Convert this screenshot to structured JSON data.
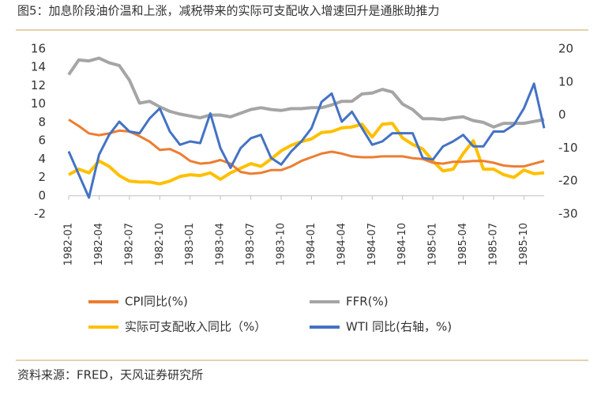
{
  "chart_data": {
    "type": "line",
    "title": "图5：加息阶段油价温和上涨，减税带来的实际可支配收入增速回升是通胀助推力",
    "source": "资料来源：FRED，天风证券研究所",
    "categories": [
      "1982-01",
      null,
      null,
      "1982-04",
      null,
      null,
      "1982-07",
      null,
      null,
      "1982-10",
      null,
      null,
      "1983-01",
      null,
      null,
      "1983-04",
      null,
      null,
      "1983-07",
      null,
      null,
      "1983-10",
      null,
      null,
      "1984-01",
      null,
      null,
      "1984-04",
      null,
      null,
      "1984-07",
      null,
      null,
      "1984-10",
      null,
      null,
      "1985-01",
      null,
      null,
      "1985-04",
      null,
      null,
      "1985-07",
      null,
      null,
      "1985-10",
      null,
      null
    ],
    "ylim": [
      -2,
      16
    ],
    "yticks": [
      -2,
      0,
      2,
      4,
      6,
      8,
      10,
      12,
      14,
      16
    ],
    "y2lim": [
      -30,
      20
    ],
    "y2ticks": [
      -30,
      -20,
      -10,
      0,
      10,
      20
    ],
    "series": [
      {
        "name": "CPI同比(%)",
        "color": "#ed7d31",
        "values": [
          8.3,
          7.6,
          6.8,
          6.6,
          6.8,
          7.1,
          7.0,
          6.5,
          5.9,
          5.0,
          5.1,
          4.6,
          3.8,
          3.5,
          3.6,
          3.9,
          3.5,
          2.6,
          2.4,
          2.5,
          2.8,
          2.8,
          3.2,
          3.8,
          4.2,
          4.6,
          4.8,
          4.6,
          4.3,
          4.2,
          4.2,
          4.3,
          4.3,
          4.3,
          4.1,
          4.0,
          3.6,
          3.5,
          3.7,
          3.7,
          3.8,
          3.8,
          3.6,
          3.3,
          3.2,
          3.2,
          3.5,
          3.8
        ]
      },
      {
        "name": "FFR(%)",
        "color": "#a5a5a5",
        "values": [
          13.2,
          14.8,
          14.7,
          15.0,
          14.5,
          14.2,
          12.6,
          10.1,
          10.3,
          9.7,
          9.2,
          8.9,
          8.7,
          8.5,
          8.8,
          8.8,
          8.6,
          9.0,
          9.4,
          9.6,
          9.4,
          9.3,
          9.5,
          9.5,
          9.6,
          9.6,
          9.9,
          10.3,
          10.3,
          11.1,
          11.2,
          11.6,
          11.3,
          10.0,
          9.4,
          8.4,
          8.4,
          8.3,
          8.5,
          8.6,
          8.2,
          8.0,
          7.5,
          7.9,
          7.9,
          7.9,
          8.1,
          8.3
        ]
      },
      {
        "name": "实际可支配收入同比（%）",
        "color": "#ffc000",
        "values": [
          2.3,
          2.9,
          2.5,
          3.8,
          3.2,
          2.2,
          1.6,
          1.5,
          1.5,
          1.3,
          1.6,
          2.1,
          2.3,
          2.2,
          2.5,
          1.8,
          2.5,
          3.0,
          3.5,
          3.2,
          4.0,
          4.9,
          5.5,
          5.9,
          6.2,
          6.9,
          7.0,
          7.4,
          7.5,
          7.8,
          6.4,
          7.8,
          7.9,
          6.3,
          5.6,
          5.1,
          3.8,
          2.7,
          2.9,
          4.6,
          6.0,
          2.9,
          2.9,
          2.3,
          2.0,
          2.8,
          2.4,
          2.5
        ]
      },
      {
        "name": "WTI 同比(右轴，%)",
        "color": "#4472c4",
        "axis": "y2",
        "values": [
          -11,
          -18,
          -25,
          -12,
          -6,
          -2,
          -5,
          -5.5,
          -1,
          2,
          -5,
          -9,
          -8,
          -8.5,
          0.5,
          -10,
          -16,
          -10,
          -7,
          -6,
          -13,
          -15,
          -11,
          -8,
          -4,
          4,
          6.5,
          -2,
          1,
          -4,
          -9,
          -8,
          -5.5,
          -5.5,
          -5.5,
          -13,
          -13.5,
          -9.5,
          -8,
          -6,
          -9.5,
          -9.5,
          -5,
          -5,
          -3,
          2,
          9.5,
          -4
        ]
      }
    ]
  }
}
